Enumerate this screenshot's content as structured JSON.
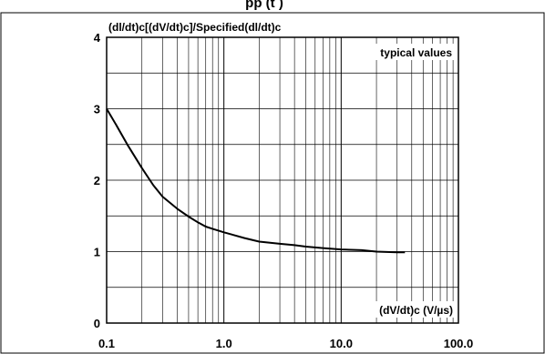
{
  "chart_data": {
    "type": "line",
    "title": "(dl/dt)c[(dV/dt)c]/Specified(dl/dt)c",
    "annotation": "typical values",
    "xlabel": "(dV/dt)c (V/µs)",
    "ylabel": "",
    "x_scale": "log",
    "xlim": [
      0.1,
      100.0
    ],
    "ylim": [
      0,
      4
    ],
    "x_tick_labels": [
      "0.1",
      "1.0",
      "10.0",
      "100.0"
    ],
    "y_tick_labels": [
      "0",
      "1",
      "2",
      "3",
      "4"
    ],
    "grid": true,
    "series": [
      {
        "name": "",
        "color": "#000000",
        "points": [
          [
            0.1,
            3.0
          ],
          [
            0.12,
            2.78
          ],
          [
            0.15,
            2.5
          ],
          [
            0.2,
            2.17
          ],
          [
            0.25,
            1.93
          ],
          [
            0.3,
            1.77
          ],
          [
            0.4,
            1.6
          ],
          [
            0.5,
            1.49
          ],
          [
            0.6,
            1.41
          ],
          [
            0.7,
            1.35
          ],
          [
            0.8,
            1.32
          ],
          [
            1.0,
            1.27
          ],
          [
            1.5,
            1.19
          ],
          [
            2.0,
            1.14
          ],
          [
            3.0,
            1.11
          ],
          [
            4.0,
            1.09
          ],
          [
            5.0,
            1.07
          ],
          [
            7.0,
            1.05
          ],
          [
            10.0,
            1.03
          ],
          [
            15.0,
            1.02
          ],
          [
            20.0,
            1.0
          ],
          [
            30.0,
            0.99
          ],
          [
            35.0,
            0.99
          ]
        ]
      }
    ]
  },
  "header": {
    "partial_title": "pp  (t  )"
  }
}
